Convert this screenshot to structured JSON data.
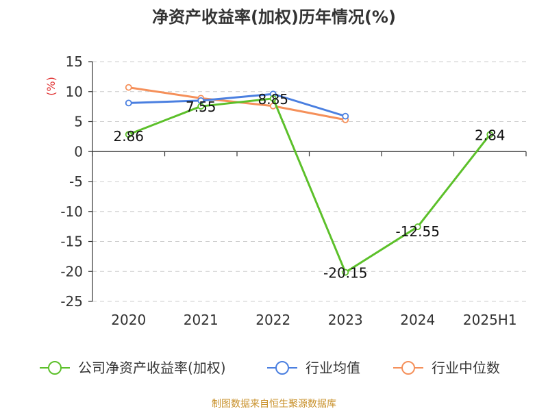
{
  "chart_data": {
    "type": "line",
    "title": "净资产收益率(加权)历年情况(%)",
    "ylabel": "(%)",
    "categories": [
      "2020",
      "2021",
      "2022",
      "2023",
      "2024",
      "2025H1"
    ],
    "ylim": [
      -25,
      15
    ],
    "yticks": [
      15,
      10,
      5,
      0,
      -5,
      -10,
      -15,
      -20,
      -25
    ],
    "grid": true,
    "legend_position": "bottom",
    "series": [
      {
        "name": "公司净资产收益率(加权)",
        "color": "#5cc02a",
        "values": [
          2.86,
          7.55,
          8.85,
          -20.15,
          -12.55,
          2.84
        ],
        "labels": [
          "2.86",
          "7.55",
          "8.85",
          "-20.15",
          "-12.55",
          "2.84"
        ]
      },
      {
        "name": "行业均值",
        "color": "#4a7fe0",
        "values": [
          8.1,
          8.5,
          9.6,
          5.9,
          null,
          null
        ]
      },
      {
        "name": "行业中位数",
        "color": "#f5905a",
        "values": [
          10.7,
          8.9,
          7.6,
          5.3,
          null,
          null
        ]
      }
    ]
  },
  "source": "制图数据来自恒生聚源数据库"
}
